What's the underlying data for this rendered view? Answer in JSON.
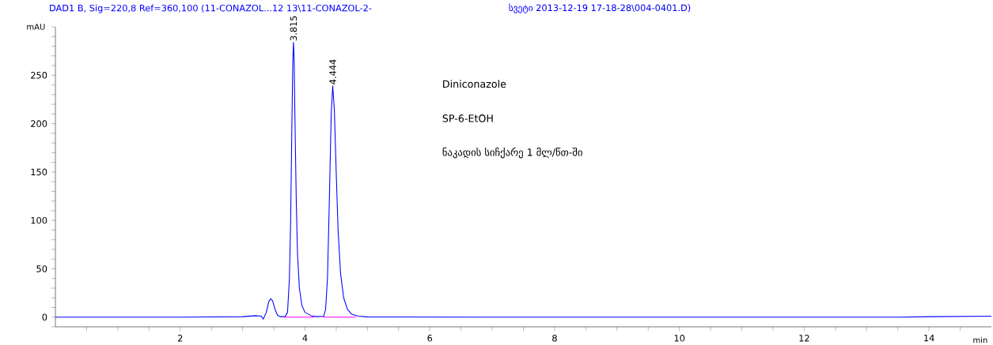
{
  "chart_data": {
    "type": "line",
    "title": "DAD1 B, Sig=220,8 Ref=360,100 (11-CONAZOL...12 13\\11-CONAZOL-2-",
    "subtitle": "სვეტი 2013-12-19 17-18-28\\004-0401.D)",
    "xlabel": "min",
    "ylabel": "mAU",
    "xlim": [
      0,
      15
    ],
    "ylim": [
      -10,
      300
    ],
    "xticks": [
      {
        "value": 0.5,
        "label": null
      },
      {
        "value": 1,
        "label": null
      },
      {
        "value": 1.5,
        "label": null
      },
      2,
      {
        "value": 2.5,
        "label": null
      },
      {
        "value": 3,
        "label": null
      },
      {
        "value": 3.5,
        "label": null
      },
      4,
      {
        "value": 4.5,
        "label": null
      },
      {
        "value": 5,
        "label": null
      },
      {
        "value": 5.5,
        "label": null
      },
      6,
      {
        "value": 6.5,
        "label": null
      },
      {
        "value": 7,
        "label": null
      },
      {
        "value": 7.5,
        "label": null
      },
      8,
      {
        "value": 8.5,
        "label": null
      },
      {
        "value": 9,
        "label": null
      },
      {
        "value": 9.5,
        "label": null
      },
      10,
      {
        "value": 10.5,
        "label": null
      },
      {
        "value": 11,
        "label": null
      },
      {
        "value": 11.5,
        "label": null
      },
      12,
      {
        "value": 12.5,
        "label": null
      },
      {
        "value": 13,
        "label": null
      },
      {
        "value": 13.5,
        "label": null
      },
      14,
      {
        "value": 14.5,
        "label": null
      }
    ],
    "yticks": [
      {
        "value": -10,
        "label": null
      },
      0,
      {
        "value": 10,
        "label": null
      },
      {
        "value": 20,
        "label": null
      },
      {
        "value": 30,
        "label": null
      },
      {
        "value": 40,
        "label": null
      },
      50,
      {
        "value": 60,
        "label": null
      },
      {
        "value": 70,
        "label": null
      },
      {
        "value": 80,
        "label": null
      },
      {
        "value": 90,
        "label": null
      },
      100,
      {
        "value": 110,
        "label": null
      },
      {
        "value": 120,
        "label": null
      },
      {
        "value": 130,
        "label": null
      },
      {
        "value": 140,
        "label": null
      },
      150,
      {
        "value": 160,
        "label": null
      },
      {
        "value": 170,
        "label": null
      },
      {
        "value": 180,
        "label": null
      },
      {
        "value": 190,
        "label": null
      },
      200,
      {
        "value": 210,
        "label": null
      },
      {
        "value": 220,
        "label": null
      },
      {
        "value": 230,
        "label": null
      },
      {
        "value": 240,
        "label": null
      },
      250,
      {
        "value": 260,
        "label": null
      },
      {
        "value": 270,
        "label": null
      },
      {
        "value": 280,
        "label": null
      },
      {
        "value": 290,
        "label": null
      },
      {
        "value": 300,
        "label": null
      }
    ],
    "series": [
      {
        "color": "#0000ff",
        "x": [
          0,
          1,
          2,
          3.0,
          3.2,
          3.3,
          3.33,
          3.38,
          3.42,
          3.45,
          3.48,
          3.52,
          3.56,
          3.6,
          3.68,
          3.72,
          3.75,
          3.77,
          3.79,
          3.805,
          3.815,
          3.825,
          3.84,
          3.86,
          3.88,
          3.91,
          3.95,
          4.0,
          4.1,
          4.2,
          4.3,
          4.33,
          4.36,
          4.39,
          4.42,
          4.444,
          4.47,
          4.5,
          4.53,
          4.57,
          4.62,
          4.68,
          4.75,
          4.85,
          5.0,
          7,
          10,
          13.5,
          14,
          15
        ],
        "values": [
          0,
          0,
          0,
          0.5,
          1.5,
          1,
          -2,
          5,
          16,
          19,
          17,
          8,
          2,
          0.5,
          0.5,
          5,
          40,
          100,
          200,
          265,
          284,
          270,
          200,
          120,
          65,
          30,
          12,
          5,
          1.5,
          0.5,
          1,
          8,
          40,
          120,
          210,
          239,
          215,
          150,
          90,
          45,
          20,
          8,
          3,
          1,
          0.3,
          0,
          0,
          0,
          0.5,
          1
        ]
      },
      {
        "color": "#ff00ff",
        "x": [
          3.66,
          4.15
        ],
        "values": [
          0,
          0
        ]
      },
      {
        "color": "#ff00ff",
        "x": [
          4.28,
          4.81
        ],
        "values": [
          0,
          0
        ]
      }
    ],
    "annotations": [
      {
        "text": "3.815",
        "x": 3.815,
        "y": 284
      },
      {
        "text": "4.444",
        "x": 4.444,
        "y": 239
      },
      "Diniconazole",
      "SP-6-EtOH",
      "ნაკადის სიჩქარე 1 მლ/წთ-ში"
    ]
  }
}
